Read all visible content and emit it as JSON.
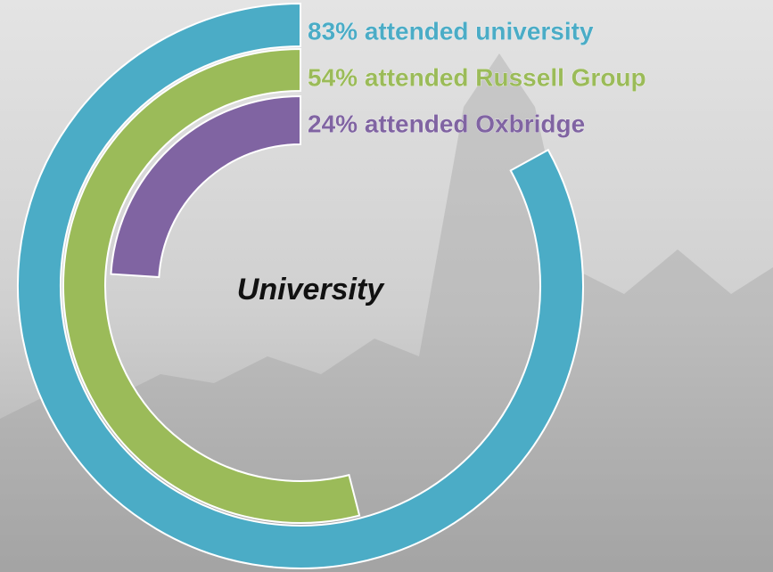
{
  "chart_data": {
    "type": "radial_bar",
    "center_label": "University",
    "categories": [
      "83% attended university",
      "54% attended Russell Group",
      "24% attended Oxbridge"
    ],
    "values": [
      83,
      54,
      24
    ],
    "colors": [
      "#4bacc6",
      "#9bbb59",
      "#8064a2"
    ],
    "ylim": [
      0,
      100
    ]
  }
}
